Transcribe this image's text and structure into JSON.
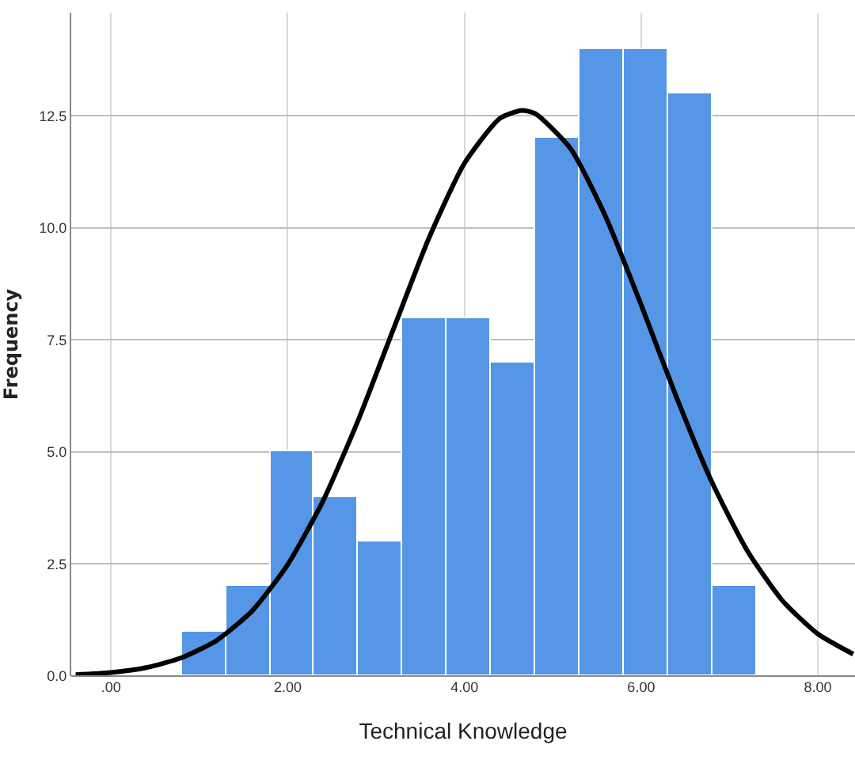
{
  "chart_data": {
    "type": "histogram",
    "xlabel": "Technical Knowledge",
    "ylabel": "Frequency",
    "bins": [
      0.8,
      1.3,
      1.8,
      2.3,
      2.8,
      3.3,
      3.8,
      4.3,
      4.8,
      5.3,
      5.8,
      6.3,
      6.8,
      7.3
    ],
    "values": [
      1,
      2,
      5,
      4,
      3,
      8,
      8,
      7,
      12,
      14,
      14,
      13,
      2
    ],
    "color": "#5596e6",
    "series": [
      {
        "type": "line",
        "color": "#000000",
        "x": [
          -0.4,
          0,
          0.4,
          0.8,
          1.2,
          1.6,
          2,
          2.4,
          2.8,
          3.2,
          3.6,
          4,
          4.4,
          4.65,
          4.8,
          5.2,
          5.6,
          6,
          6.4,
          6.8,
          7.2,
          7.6,
          8,
          8.4
        ],
        "values": [
          0.03,
          0.08,
          0.19,
          0.41,
          0.8,
          1.46,
          2.49,
          3.91,
          5.72,
          7.76,
          9.78,
          11.44,
          12.44,
          12.62,
          12.55,
          11.77,
          10.24,
          8.28,
          6.22,
          4.33,
          2.8,
          1.68,
          0.94,
          0.49
        ]
      }
    ],
    "xlim": [
      -0.45,
      8.42
    ],
    "ylim": [
      0,
      14.8
    ],
    "xticks": [
      {
        "value": 0,
        "label": ".00"
      },
      {
        "value": 2,
        "label": "2.00"
      },
      {
        "value": 4,
        "label": "4.00"
      },
      {
        "value": 6,
        "label": "6.00"
      },
      {
        "value": 8,
        "label": "8.00"
      }
    ],
    "yticks": [
      {
        "value": 0,
        "label": "0.0"
      },
      {
        "value": 2.5,
        "label": "2.5"
      },
      {
        "value": 5,
        "label": "5.0"
      },
      {
        "value": 7.5,
        "label": "7.5"
      },
      {
        "value": 10,
        "label": "10.0"
      },
      {
        "value": 12.5,
        "label": "12.5"
      }
    ],
    "grid": true
  }
}
